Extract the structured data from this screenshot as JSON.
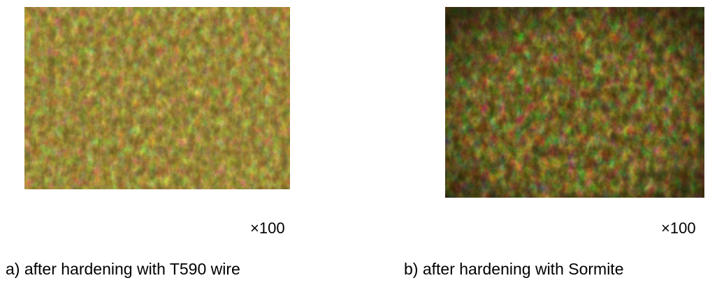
{
  "panels": [
    {
      "magnification": "×100",
      "caption": "a) after hardening with T590 wire"
    },
    {
      "magnification": "×100",
      "caption": "b) after hardening with Sormite"
    }
  ]
}
